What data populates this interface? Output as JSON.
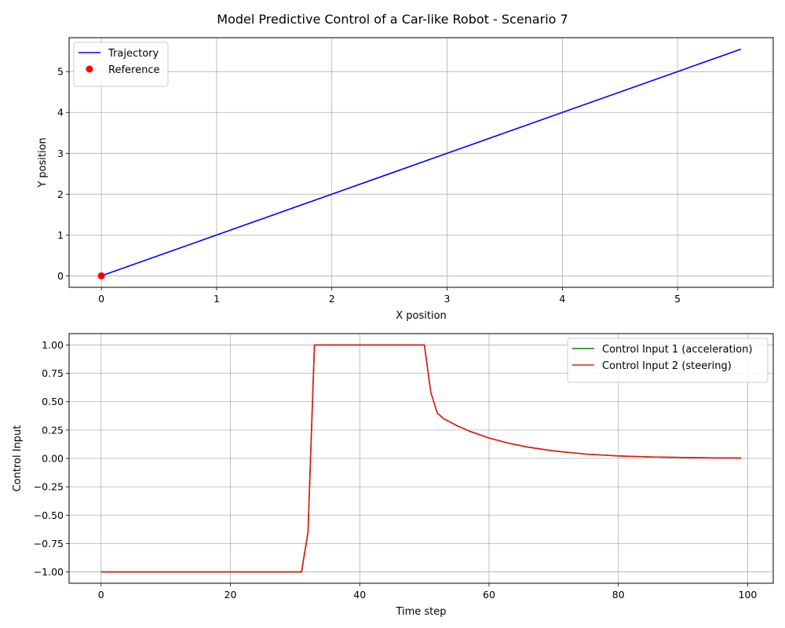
{
  "figure": {
    "title": "Model Predictive Control of a Car-like Robot - Scenario 7"
  },
  "chart_data": [
    {
      "type": "line",
      "xlabel": "X position",
      "ylabel": "Y position",
      "xlim": [
        -0.28,
        5.83
      ],
      "ylim": [
        -0.28,
        5.83
      ],
      "xticks": [
        0,
        1,
        2,
        3,
        4,
        5
      ],
      "yticks": [
        0,
        1,
        2,
        3,
        4,
        5
      ],
      "grid": true,
      "legend_position": "top-left",
      "series": [
        {
          "name": "Trajectory",
          "kind": "line",
          "color": "#0000ff",
          "x": [
            0,
            0.5,
            1,
            1.5,
            2,
            2.5,
            3,
            3.5,
            4,
            4.5,
            5,
            5.55
          ],
          "y": [
            0,
            0.5,
            1,
            1.5,
            2,
            2.5,
            3,
            3.5,
            4,
            4.5,
            5,
            5.55
          ]
        },
        {
          "name": "Reference",
          "kind": "scatter",
          "color": "#ff0000",
          "x": [
            0
          ],
          "y": [
            0
          ]
        }
      ]
    },
    {
      "type": "line",
      "xlabel": "Time step",
      "ylabel": "Control Input",
      "xlim": [
        -4.95,
        103.95
      ],
      "ylim": [
        -1.1,
        1.1
      ],
      "xticks": [
        0,
        20,
        40,
        60,
        80,
        100
      ],
      "yticks": [
        -1.0,
        -0.75,
        -0.5,
        -0.25,
        0.0,
        0.25,
        0.5,
        0.75,
        1.0
      ],
      "ytick_labels": [
        "−1.00",
        "−0.75",
        "−0.50",
        "−0.25",
        "0.00",
        "0.25",
        "0.50",
        "0.75",
        "1.00"
      ],
      "grid": true,
      "legend_position": "top-right",
      "series": [
        {
          "name": "Control Input 1 (acceleration)",
          "kind": "line",
          "color": "#008000",
          "x": [
            0,
            31,
            32,
            33,
            50,
            51,
            52,
            53,
            55,
            57,
            60,
            63,
            66,
            70,
            75,
            80,
            85,
            90,
            95,
            99
          ],
          "y": [
            -1,
            -1,
            -0.65,
            1,
            1,
            0.58,
            0.4,
            0.35,
            0.29,
            0.24,
            0.18,
            0.135,
            0.1,
            0.066,
            0.038,
            0.022,
            0.013,
            0.008,
            0.005,
            0.004
          ]
        },
        {
          "name": "Control Input 2 (steering)",
          "kind": "line",
          "color": "#e41a1c",
          "x": [
            0,
            31,
            32,
            33,
            50,
            51,
            52,
            53,
            55,
            57,
            60,
            63,
            66,
            70,
            75,
            80,
            85,
            90,
            95,
            99
          ],
          "y": [
            -1,
            -1,
            -0.65,
            1,
            1,
            0.58,
            0.4,
            0.35,
            0.29,
            0.24,
            0.18,
            0.135,
            0.1,
            0.066,
            0.038,
            0.022,
            0.013,
            0.008,
            0.005,
            0.004
          ]
        }
      ]
    }
  ]
}
